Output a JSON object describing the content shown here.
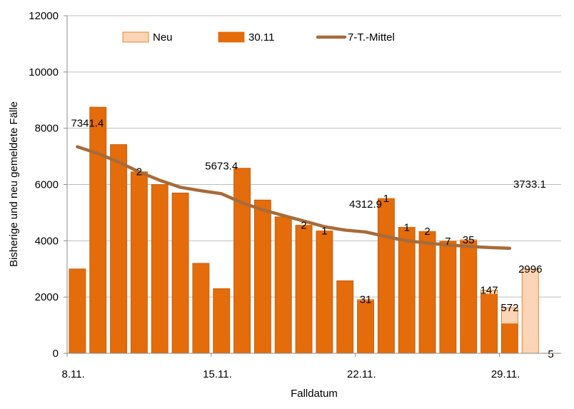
{
  "chart_data": {
    "type": "bar",
    "xlabel": "Falldatum",
    "ylabel": "Bisherige  und neu gemeldete  Fälle",
    "ylim": [
      0,
      12000
    ],
    "yticks": [
      0,
      2000,
      4000,
      6000,
      8000,
      10000,
      12000
    ],
    "ytick_labels": [
      "0",
      "2000",
      "4000",
      "6000",
      "8000",
      "10000",
      "12000"
    ],
    "xtick_labels": [
      {
        "index": 0,
        "label": "8.11."
      },
      {
        "index": 7,
        "label": "15.11."
      },
      {
        "index": 14,
        "label": "22.11."
      },
      {
        "index": 21,
        "label": "29.11."
      }
    ],
    "grid": true,
    "legend_position": "top",
    "colors": {
      "neu": "#FBD5B5",
      "stand": "#E46C0A",
      "mittel": "#A86B3A",
      "bar_edge": "#B85A10",
      "grid": "#BFBFBF"
    },
    "legend": [
      {
        "key": "neu",
        "label": "Neu"
      },
      {
        "key": "stand",
        "label": "30.11"
      },
      {
        "key": "mittel",
        "label": "7-T.-Mittel"
      }
    ],
    "series": [
      {
        "name": "30.11",
        "key": "stand",
        "values": [
          3000,
          8750,
          7420,
          6450,
          6000,
          5700,
          3200,
          2300,
          6580,
          5450,
          4850,
          4550,
          4350,
          2580,
          1880,
          5500,
          4480,
          4330,
          3980,
          4000,
          2100,
          1050,
          0,
          0
        ]
      },
      {
        "name": "Neu",
        "key": "neu",
        "values": [
          0,
          0,
          0,
          2,
          0,
          0,
          0,
          0,
          0,
          0,
          0,
          2,
          1,
          0,
          31,
          1,
          1,
          2,
          7,
          35,
          147,
          572,
          2996,
          5
        ]
      },
      {
        "name": "7-T.-Mittel",
        "key": "mittel",
        "values": [
          7341.4,
          7100,
          6800,
          6450,
          6150,
          5900,
          5780,
          5673.4,
          5350,
          5100,
          4900,
          4700,
          4500,
          4380,
          4312.9,
          4150,
          4000,
          3920,
          3850,
          3800,
          3760,
          3733.1,
          null,
          null
        ]
      }
    ],
    "neu_labels": [
      {
        "index": 3,
        "text": "2"
      },
      {
        "index": 11,
        "text": "2"
      },
      {
        "index": 12,
        "text": "1"
      },
      {
        "index": 14,
        "text": "31"
      },
      {
        "index": 15,
        "text": "1"
      },
      {
        "index": 16,
        "text": "1"
      },
      {
        "index": 17,
        "text": "2"
      },
      {
        "index": 18,
        "text": "7"
      },
      {
        "index": 19,
        "text": "35"
      },
      {
        "index": 20,
        "text": "147"
      },
      {
        "index": 21,
        "text": "572"
      },
      {
        "index": 22,
        "text": "2996"
      },
      {
        "index": 23,
        "text": "5"
      }
    ],
    "mittel_labels": [
      {
        "index": 0,
        "text": "7341.4"
      },
      {
        "index": 7,
        "text": "5673.4"
      },
      {
        "index": 14,
        "text": "4312.9"
      },
      {
        "index": 21,
        "text": "3733.1"
      }
    ]
  }
}
